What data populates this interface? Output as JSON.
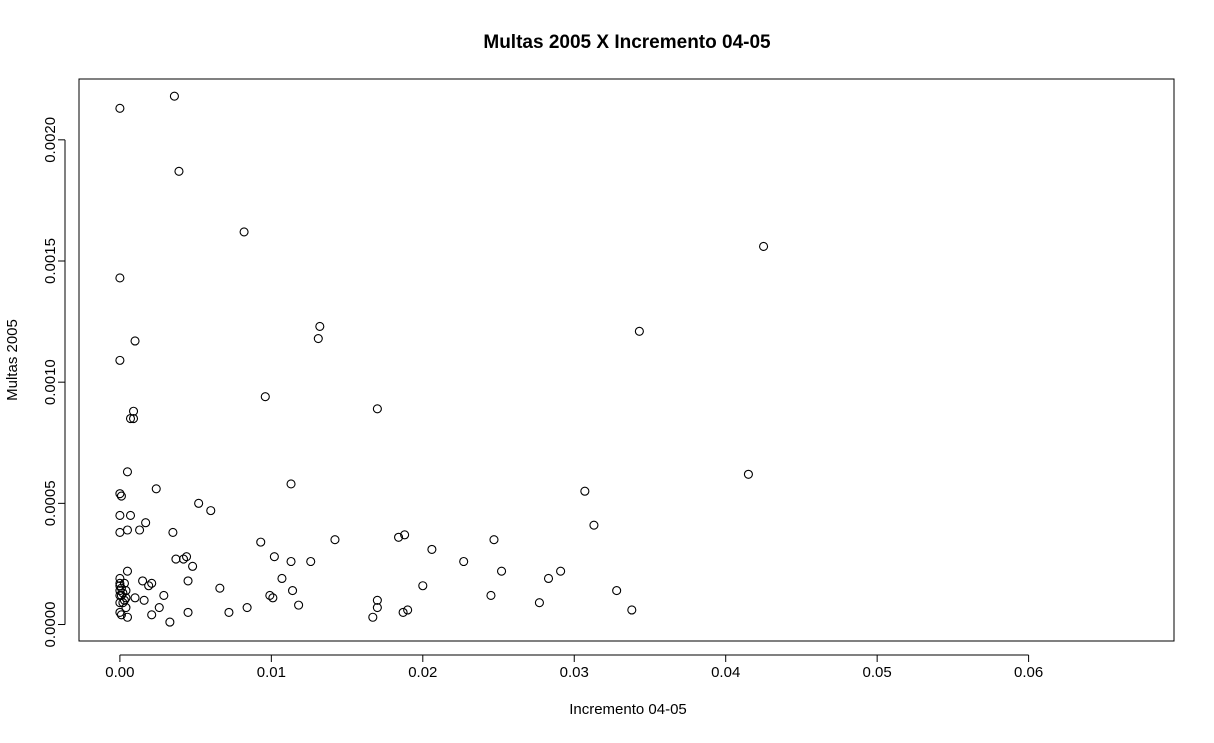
{
  "chart_data": {
    "type": "scatter",
    "title": "Multas 2005 X Incremento 04-05",
    "xlabel": "Incremento 04-05",
    "ylabel": "Multas 2005",
    "xlim": [
      -0.0027,
      0.0696
    ],
    "ylim": [
      -6.8e-05,
      0.002251
    ],
    "grid": false,
    "x_ticks": [
      0.0,
      0.01,
      0.02,
      0.03,
      0.04,
      0.05,
      0.06
    ],
    "x_tick_labels": [
      "0.00",
      "0.01",
      "0.02",
      "0.03",
      "0.04",
      "0.05",
      "0.06"
    ],
    "y_ticks": [
      0.0,
      0.0005,
      0.001,
      0.0015,
      0.002
    ],
    "y_tick_labels": [
      "0.0000",
      "0.0005",
      "0.0010",
      "0.0015",
      "0.0020"
    ],
    "points": [
      [
        0.0,
        0.00213
      ],
      [
        0.0036,
        0.00218
      ],
      [
        0.0039,
        0.00187
      ],
      [
        0.0082,
        0.00162
      ],
      [
        0.0,
        0.00143
      ],
      [
        0.0425,
        0.00156
      ],
      [
        0.0132,
        0.00123
      ],
      [
        0.0131,
        0.00118
      ],
      [
        0.0343,
        0.00121
      ],
      [
        0.001,
        0.00117
      ],
      [
        0.0,
        0.00109
      ],
      [
        0.0096,
        0.00094
      ],
      [
        0.017,
        0.00089
      ],
      [
        0.0009,
        0.00088
      ],
      [
        0.0007,
        0.00085
      ],
      [
        0.0009,
        0.00085
      ],
      [
        0.0005,
        0.00063
      ],
      [
        0.0415,
        0.00062
      ],
      [
        0.0113,
        0.00058
      ],
      [
        0.0024,
        0.00056
      ],
      [
        0.0307,
        0.00055
      ],
      [
        0.0,
        0.00054
      ],
      [
        0.0001,
        0.00053
      ],
      [
        0.0052,
        0.0005
      ],
      [
        0.006,
        0.00047
      ],
      [
        0.0007,
        0.00045
      ],
      [
        0.0,
        0.00045
      ],
      [
        0.0017,
        0.00042
      ],
      [
        0.0313,
        0.00041
      ],
      [
        0.0013,
        0.00039
      ],
      [
        0.0005,
        0.00039
      ],
      [
        0.0,
        0.00038
      ],
      [
        0.0035,
        0.00038
      ],
      [
        0.0188,
        0.00037
      ],
      [
        0.0184,
        0.00036
      ],
      [
        0.0142,
        0.00035
      ],
      [
        0.0247,
        0.00035
      ],
      [
        0.0093,
        0.00034
      ],
      [
        0.0206,
        0.00031
      ],
      [
        0.0102,
        0.00028
      ],
      [
        0.0044,
        0.00028
      ],
      [
        0.0042,
        0.00027
      ],
      [
        0.0037,
        0.00027
      ],
      [
        0.0126,
        0.00026
      ],
      [
        0.0113,
        0.00026
      ],
      [
        0.0227,
        0.00026
      ],
      [
        0.0048,
        0.00024
      ],
      [
        0.0291,
        0.00022
      ],
      [
        0.0005,
        0.00022
      ],
      [
        0.0252,
        0.00022
      ],
      [
        0.0,
        0.00019
      ],
      [
        0.0107,
        0.00019
      ],
      [
        0.0283,
        0.00019
      ],
      [
        0.0045,
        0.00018
      ],
      [
        0.0015,
        0.00018
      ],
      [
        0.0021,
        0.00017
      ],
      [
        0.0003,
        0.00017
      ],
      [
        0.0,
        0.00017
      ],
      [
        0.0019,
        0.00016
      ],
      [
        0.0,
        0.00016
      ],
      [
        0.02,
        0.00016
      ],
      [
        0.0066,
        0.00015
      ],
      [
        0.0001,
        0.00015
      ],
      [
        0.0,
        0.00014
      ],
      [
        0.0004,
        0.00014
      ],
      [
        0.0114,
        0.00014
      ],
      [
        0.0328,
        0.00014
      ],
      [
        0.0002,
        0.00013
      ],
      [
        0.0001,
        0.00012
      ],
      [
        0.0,
        0.00012
      ],
      [
        0.0245,
        0.00012
      ],
      [
        0.0099,
        0.00012
      ],
      [
        0.0029,
        0.00012
      ],
      [
        0.001,
        0.00011
      ],
      [
        0.0004,
        0.00011
      ],
      [
        0.0101,
        0.00011
      ],
      [
        0.0003,
        0.0001
      ],
      [
        0.0016,
        0.0001
      ],
      [
        0.017,
        0.0001
      ],
      [
        0.0,
        9e-05
      ],
      [
        0.0002,
        9e-05
      ],
      [
        0.0277,
        9e-05
      ],
      [
        0.0118,
        8e-05
      ],
      [
        0.0004,
        7e-05
      ],
      [
        0.0026,
        7e-05
      ],
      [
        0.0084,
        7e-05
      ],
      [
        0.017,
        7e-05
      ],
      [
        0.0338,
        6e-05
      ],
      [
        0.019,
        6e-05
      ],
      [
        0.0072,
        5e-05
      ],
      [
        0.0,
        5e-05
      ],
      [
        0.0187,
        5e-05
      ],
      [
        0.0045,
        5e-05
      ],
      [
        0.0021,
        4e-05
      ],
      [
        0.0001,
        4e-05
      ],
      [
        0.0005,
        3e-05
      ],
      [
        0.0167,
        3e-05
      ],
      [
        0.0033,
        1e-05
      ]
    ]
  }
}
